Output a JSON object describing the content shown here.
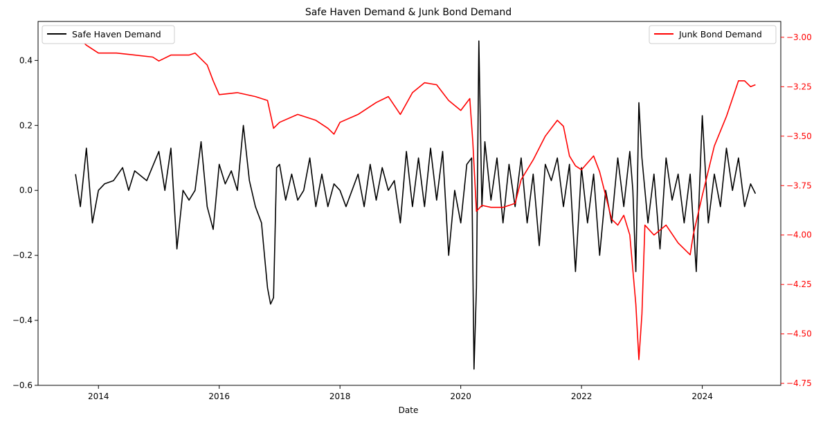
{
  "chart_data": {
    "type": "line",
    "title": "Safe Haven Demand & Junk Bond Demand",
    "xlabel": "Date",
    "xlim": [
      2013.0,
      2025.3
    ],
    "x_ticks": [
      2014,
      2016,
      2018,
      2020,
      2022,
      2024
    ],
    "x_tick_labels": [
      "2014",
      "2016",
      "2018",
      "2020",
      "2022",
      "2024"
    ],
    "y_left": {
      "lim": [
        -0.6,
        0.52
      ],
      "ticks": [
        -0.6,
        -0.4,
        -0.2,
        0.0,
        0.2,
        0.4
      ],
      "tick_labels": [
        "−0.6",
        "−0.4",
        "−0.2",
        "0.0",
        "0.2",
        "0.4"
      ],
      "color": "#000000"
    },
    "y_right": {
      "lim": [
        -4.76,
        -2.92
      ],
      "ticks": [
        -4.75,
        -4.5,
        -4.25,
        -4.0,
        -3.75,
        -3.5,
        -3.25,
        -3.0
      ],
      "tick_labels": [
        "−4.75",
        "−4.50",
        "−4.25",
        "−4.00",
        "−3.75",
        "−3.50",
        "−3.25",
        "−3.00"
      ],
      "color": "#ff0000"
    },
    "grid": false,
    "legends": [
      {
        "series": "Safe Haven Demand",
        "placement": "upper-left"
      },
      {
        "series": "Junk Bond Demand",
        "placement": "upper-right"
      }
    ],
    "series": [
      {
        "name": "Safe Haven Demand",
        "axis": "left",
        "color": "#000000",
        "x": [
          2013.62,
          2013.7,
          2013.8,
          2013.9,
          2014.0,
          2014.1,
          2014.25,
          2014.4,
          2014.5,
          2014.6,
          2014.8,
          2015.0,
          2015.1,
          2015.2,
          2015.3,
          2015.4,
          2015.5,
          2015.6,
          2015.7,
          2015.8,
          2015.9,
          2016.0,
          2016.1,
          2016.2,
          2016.3,
          2016.4,
          2016.5,
          2016.6,
          2016.7,
          2016.75,
          2016.8,
          2016.85,
          2016.9,
          2016.95,
          2017.0,
          2017.1,
          2017.2,
          2017.3,
          2017.4,
          2017.5,
          2017.6,
          2017.7,
          2017.8,
          2017.9,
          2018.0,
          2018.1,
          2018.2,
          2018.3,
          2018.4,
          2018.5,
          2018.6,
          2018.7,
          2018.8,
          2018.9,
          2019.0,
          2019.1,
          2019.2,
          2019.3,
          2019.4,
          2019.5,
          2019.6,
          2019.7,
          2019.8,
          2019.9,
          2020.0,
          2020.1,
          2020.18,
          2020.22,
          2020.26,
          2020.3,
          2020.35,
          2020.4,
          2020.5,
          2020.6,
          2020.7,
          2020.8,
          2020.9,
          2021.0,
          2021.1,
          2021.2,
          2021.3,
          2021.4,
          2021.5,
          2021.6,
          2021.7,
          2021.8,
          2021.9,
          2022.0,
          2022.1,
          2022.2,
          2022.3,
          2022.4,
          2022.5,
          2022.6,
          2022.7,
          2022.8,
          2022.85,
          2022.9,
          2022.95,
          2023.0,
          2023.1,
          2023.2,
          2023.3,
          2023.4,
          2023.5,
          2023.6,
          2023.7,
          2023.8,
          2023.9,
          2024.0,
          2024.1,
          2024.2,
          2024.3,
          2024.4,
          2024.5,
          2024.6,
          2024.7,
          2024.8,
          2024.88
        ],
        "y": [
          0.05,
          -0.05,
          0.13,
          -0.1,
          0.0,
          0.02,
          0.03,
          0.07,
          0.0,
          0.06,
          0.03,
          0.12,
          0.0,
          0.13,
          -0.18,
          0.0,
          -0.03,
          0.0,
          0.15,
          -0.05,
          -0.12,
          0.08,
          0.02,
          0.06,
          0.0,
          0.2,
          0.03,
          -0.05,
          -0.1,
          -0.2,
          -0.3,
          -0.35,
          -0.33,
          0.07,
          0.08,
          -0.03,
          0.05,
          -0.03,
          0.0,
          0.1,
          -0.05,
          0.05,
          -0.05,
          0.02,
          0.0,
          -0.05,
          0.0,
          0.05,
          -0.05,
          0.08,
          -0.03,
          0.07,
          0.0,
          0.03,
          -0.1,
          0.12,
          -0.05,
          0.1,
          -0.05,
          0.13,
          -0.03,
          0.12,
          -0.2,
          0.0,
          -0.1,
          0.08,
          0.1,
          -0.55,
          -0.3,
          0.46,
          -0.05,
          0.15,
          -0.03,
          0.1,
          -0.1,
          0.08,
          -0.05,
          0.1,
          -0.1,
          0.05,
          -0.17,
          0.08,
          0.03,
          0.1,
          -0.05,
          0.08,
          -0.25,
          0.07,
          -0.1,
          0.05,
          -0.2,
          0.0,
          -0.1,
          0.1,
          -0.05,
          0.12,
          0.0,
          -0.25,
          0.27,
          0.1,
          -0.1,
          0.05,
          -0.18,
          0.1,
          -0.03,
          0.05,
          -0.1,
          0.05,
          -0.25,
          0.23,
          -0.1,
          0.05,
          -0.05,
          0.13,
          0.0,
          0.1,
          -0.05,
          0.02,
          -0.01
        ]
      },
      {
        "name": "Junk Bond Demand",
        "axis": "right",
        "color": "#ff0000",
        "x": [
          2013.62,
          2013.8,
          2014.0,
          2014.3,
          2014.6,
          2014.9,
          2015.0,
          2015.2,
          2015.5,
          2015.6,
          2015.8,
          2015.9,
          2016.0,
          2016.3,
          2016.6,
          2016.8,
          2016.9,
          2017.0,
          2017.3,
          2017.6,
          2017.8,
          2017.9,
          2018.0,
          2018.3,
          2018.6,
          2018.8,
          2019.0,
          2019.2,
          2019.4,
          2019.6,
          2019.8,
          2020.0,
          2020.15,
          2020.2,
          2020.26,
          2020.35,
          2020.5,
          2020.7,
          2020.9,
          2021.0,
          2021.2,
          2021.4,
          2021.6,
          2021.7,
          2021.8,
          2021.9,
          2022.0,
          2022.2,
          2022.3,
          2022.5,
          2022.6,
          2022.7,
          2022.8,
          2022.9,
          2022.95,
          2023.0,
          2023.05,
          2023.2,
          2023.4,
          2023.6,
          2023.8,
          2023.85,
          2024.0,
          2024.2,
          2024.4,
          2024.6,
          2024.7,
          2024.8,
          2024.88
        ],
        "y": [
          -2.99,
          -3.04,
          -3.08,
          -3.08,
          -3.09,
          -3.1,
          -3.12,
          -3.09,
          -3.09,
          -3.08,
          -3.14,
          -3.22,
          -3.29,
          -3.28,
          -3.3,
          -3.32,
          -3.46,
          -3.43,
          -3.39,
          -3.42,
          -3.46,
          -3.49,
          -3.43,
          -3.39,
          -3.33,
          -3.3,
          -3.39,
          -3.28,
          -3.23,
          -3.24,
          -3.32,
          -3.37,
          -3.31,
          -3.53,
          -3.88,
          -3.85,
          -3.86,
          -3.86,
          -3.84,
          -3.72,
          -3.62,
          -3.5,
          -3.42,
          -3.45,
          -3.6,
          -3.65,
          -3.67,
          -3.6,
          -3.68,
          -3.92,
          -3.95,
          -3.9,
          -4.0,
          -4.35,
          -4.63,
          -4.4,
          -3.95,
          -4.0,
          -3.95,
          -4.04,
          -4.1,
          -4.0,
          -3.8,
          -3.55,
          -3.4,
          -3.22,
          -3.22,
          -3.25,
          -3.24
        ]
      }
    ]
  }
}
